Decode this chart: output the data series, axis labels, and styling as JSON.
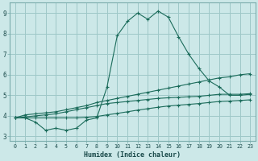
{
  "xlabel": "Humidex (Indice chaleur)",
  "bg_color": "#cce8e8",
  "grid_color": "#9ec8c8",
  "line_color": "#1a6b5a",
  "xlim": [
    -0.5,
    23.5
  ],
  "ylim": [
    2.8,
    9.5
  ],
  "xticks": [
    0,
    1,
    2,
    3,
    4,
    5,
    6,
    7,
    8,
    9,
    10,
    11,
    12,
    13,
    14,
    15,
    16,
    17,
    18,
    19,
    20,
    21,
    22,
    23
  ],
  "yticks": [
    3,
    4,
    5,
    6,
    7,
    8,
    9
  ],
  "series": {
    "main": [
      3.9,
      3.9,
      3.7,
      3.3,
      3.4,
      3.3,
      3.4,
      3.8,
      3.9,
      5.4,
      7.9,
      8.6,
      9.0,
      8.7,
      9.1,
      8.8,
      7.85,
      7.0,
      6.3,
      5.7,
      5.4,
      5.0,
      5.0,
      5.05
    ],
    "upper": [
      3.9,
      4.05,
      4.1,
      4.15,
      4.2,
      4.3,
      4.4,
      4.5,
      4.65,
      4.75,
      4.85,
      4.95,
      5.05,
      5.15,
      5.25,
      5.35,
      5.45,
      5.55,
      5.65,
      5.75,
      5.85,
      5.9,
      6.0,
      6.05
    ],
    "mid": [
      3.9,
      3.95,
      4.0,
      4.05,
      4.1,
      4.2,
      4.3,
      4.4,
      4.5,
      4.6,
      4.65,
      4.7,
      4.75,
      4.8,
      4.85,
      4.88,
      4.9,
      4.93,
      4.95,
      5.0,
      5.05,
      5.05,
      5.05,
      5.08
    ],
    "lower": [
      3.9,
      3.9,
      3.9,
      3.9,
      3.9,
      3.9,
      3.9,
      3.93,
      3.97,
      4.05,
      4.12,
      4.2,
      4.28,
      4.35,
      4.42,
      4.48,
      4.52,
      4.56,
      4.6,
      4.65,
      4.7,
      4.72,
      4.75,
      4.78
    ]
  }
}
